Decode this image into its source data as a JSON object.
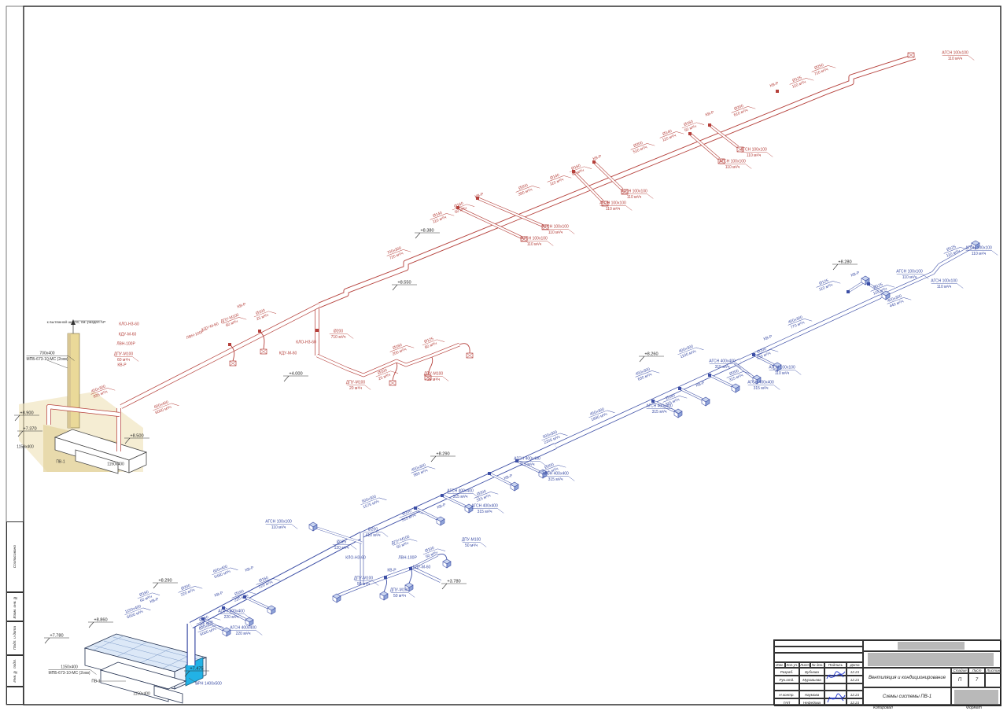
{
  "colors": {
    "exhaust": "#b5403b",
    "supply": "#3c4ea5",
    "shaft_beige": "#ead999",
    "panel_cyan": "#22b2e6",
    "redaction_gray": "#b9b9b9"
  },
  "margins": {
    "items": [
      "Согласовано",
      "Взам. инв. №",
      "Подп. и дата",
      "Инв. № подл."
    ]
  },
  "tb": {
    "header": [
      "Изм.",
      "Кол.уч.",
      "Лист",
      "№ док.",
      "Подпись",
      "Дата"
    ],
    "rows": [
      {
        "role": "Разраб.",
        "name": "Бубнова",
        "date": "12.21"
      },
      {
        "role": "Рук.отд.",
        "name": "Муравьева",
        "date": "12.21"
      },
      {
        "role": "",
        "name": "",
        "date": ""
      },
      {
        "role": "Н.контр.",
        "name": "Наумова",
        "date": "12.21"
      },
      {
        "role": "ГАП",
        "name": "Нефедова",
        "date": "12.21"
      }
    ],
    "doc_type": "Вентиляция и кондиционирование",
    "sheet_title": "Схемы системы ПВ-1",
    "stage_label": "Стадия",
    "sheet_label": "Лист",
    "sheets_label": "Листов",
    "stage": "П",
    "sheet_no": "7",
    "sheets_no": "",
    "footer_left": "Копировал",
    "footer_right": "Формат"
  },
  "drawing": {
    "notes": {
      "shaft_note": "к вытяжной шахте, см. раздел АР"
    },
    "labels": [
      [
        "АГСН 100х100",
        "110 м³/ч",
        1214,
        70,
        0,
        "r"
      ],
      [
        "Ø125",
        "110 м³/ч",
        1014,
        103,
        -21,
        "r"
      ],
      [
        "КВ-Р",
        "",
        985,
        110,
        -21,
        "r"
      ],
      [
        "Ø250",
        "710 м³/ч",
        1042,
        87,
        -21,
        "r"
      ],
      [
        "Ø200",
        "610 м³/ч",
        940,
        139,
        -21,
        "r"
      ],
      [
        "КВ-Р",
        "",
        903,
        147,
        -21,
        "r"
      ],
      [
        "Ø160",
        "50 м³/ч",
        876,
        159,
        -21,
        "r"
      ],
      [
        "Ø140",
        "110 м³/ч",
        849,
        171,
        -21,
        "r"
      ],
      [
        "АГСН 100х100",
        "110 м³/ч",
        958,
        193,
        0,
        "r"
      ],
      [
        "АГСН 100х100",
        "110 м³/ч",
        931,
        208,
        0,
        "r"
      ],
      [
        "Ø200",
        "510 м³/ч",
        812,
        186,
        -21,
        "r"
      ],
      [
        "КВ-Р",
        "",
        760,
        203,
        -21,
        "r"
      ],
      [
        "Ø160",
        "50 м³/ч",
        733,
        215,
        -21,
        "r"
      ],
      [
        "Ø140",
        "110 м³/ч",
        706,
        227,
        -21,
        "r"
      ],
      [
        "АГСН 100х100",
        "110 м³/ч",
        806,
        246,
        0,
        "r"
      ],
      [
        "АГСН 100х100",
        "110 м³/ч",
        779,
        261,
        0,
        "r"
      ],
      [
        "Ø200",
        "390 м³/ч",
        666,
        240,
        -21,
        "r"
      ],
      [
        "КВ-Р",
        "",
        610,
        251,
        -21,
        "r"
      ],
      [
        "Ø160",
        "50 м³/ч",
        584,
        263,
        -21,
        "r"
      ],
      [
        "Ø140",
        "110 м³/ч",
        557,
        275,
        -21,
        "r"
      ],
      [
        "АГСН 100х100",
        "110 м³/ч",
        706,
        291,
        0,
        "r"
      ],
      [
        "АГСН 100х100",
        "110 м³/ч",
        679,
        306,
        0,
        "r"
      ],
      [
        "700х300",
        "720 м³/ч",
        502,
        321,
        -21,
        "r"
      ],
      [
        "Ø200",
        "710 м³/ч",
        430,
        424,
        0,
        "r"
      ],
      [
        "КЛО-НЗ-60",
        "",
        389,
        438,
        0,
        "r"
      ],
      [
        "КДУ-М-60",
        "",
        366,
        452,
        0,
        "r"
      ],
      [
        "КВ-Р",
        "",
        308,
        391,
        -21,
        "r"
      ],
      [
        "Ø100",
        "25 м³/ч",
        332,
        399,
        -21,
        "r"
      ],
      [
        "ДПУ-М100",
        "60 м³/ч",
        293,
        407,
        -21,
        "r"
      ],
      [
        "КДУ-М-60",
        "",
        268,
        418,
        -21,
        "r"
      ],
      [
        "ЛВН-100Р",
        "",
        249,
        428,
        -21,
        "r"
      ],
      [
        "КЛО-НЗ-60",
        "",
        164,
        415,
        0,
        "r"
      ],
      [
        "КДУ-М-60",
        "",
        162,
        428,
        0,
        "r"
      ],
      [
        "ЛВН-100Р",
        "",
        160,
        440,
        0,
        "r"
      ],
      [
        "ДПУ-М100",
        "60 м³/ч",
        157,
        453,
        0,
        "r"
      ],
      [
        "КВ-Р",
        "",
        155,
        467,
        0,
        "r"
      ],
      [
        "450х300",
        "835 м³/ч",
        126,
        497,
        -21,
        "r"
      ],
      [
        "600х400",
        "6000 м³/ч",
        206,
        517,
        -21,
        "r"
      ],
      [
        "ДПУ-М100",
        "20 м³/ч",
        452,
        489,
        0,
        "r"
      ],
      [
        "Ø100",
        "25 м³/ч",
        487,
        475,
        -21,
        "r"
      ],
      [
        "Ø160",
        "200 м³/ч",
        506,
        443,
        -21,
        "r"
      ],
      [
        "Ø125",
        "80 м³/ч",
        546,
        435,
        -21,
        "r"
      ],
      [
        "ДПУ-М100",
        "20 м³/ч",
        551,
        478,
        0,
        "r"
      ],
      [
        "700х400",
        "МПБ-673-10-МС (2охв)",
        60,
        452,
        0,
        "k"
      ],
      [
        "ПВ-1",
        "",
        77,
        590,
        0,
        "k"
      ],
      [
        "1150х400",
        "",
        32,
        571,
        0,
        "k"
      ],
      [
        "1150х400",
        "",
        147,
        593,
        0,
        "k"
      ],
      [
        "1150х400",
        "МПБ-673-10-МС (2охв)",
        88,
        851,
        0,
        "k"
      ],
      [
        "ПВ-1",
        "",
        122,
        869,
        0,
        "k"
      ],
      [
        "1150х400",
        "",
        180,
        885,
        0,
        "k"
      ],
      [
        "ВРН 1400х500",
        "",
        265,
        872,
        0,
        "b"
      ],
      [
        "600х400",
        "6000 м³/ч",
        263,
        799,
        -21,
        "b"
      ],
      [
        "1150х400",
        "6000 м³/ч",
        170,
        777,
        -21,
        "b"
      ],
      [
        "КВ-Р",
        "",
        197,
        766,
        -21,
        "b"
      ],
      [
        "Ø160",
        "60 м³/ч",
        184,
        757,
        -21,
        "b"
      ],
      [
        "Ø200",
        "220 м³/ч",
        237,
        749,
        -21,
        "b"
      ],
      [
        "600х400",
        "5480 м³/ч",
        281,
        726,
        -21,
        "b"
      ],
      [
        "КВ-Р",
        "",
        318,
        726,
        -21,
        "b"
      ],
      [
        "Ø160",
        "220 м³/ч",
        336,
        739,
        -21,
        "b"
      ],
      [
        "КВ-Р",
        "",
        279,
        758,
        -21,
        "b"
      ],
      [
        "Ø160",
        "220 м³/ч",
        305,
        756,
        -21,
        "b"
      ],
      [
        "АГСН 400х400",
        "220 м³/ч",
        294,
        780,
        0,
        "b"
      ],
      [
        "АГСН 400х400",
        "220 м³/ч",
        309,
        801,
        0,
        "b"
      ],
      [
        "Ø160",
        "220 м³/ч",
        260,
        789,
        -21,
        "b"
      ],
      [
        "500х300",
        "2205 м³/ч",
        700,
        555,
        -21,
        "b"
      ],
      [
        "450х300",
        "960 м³/ч",
        533,
        597,
        -21,
        "b"
      ],
      [
        "500х300",
        "1575 м³/ч",
        470,
        637,
        -21,
        "b"
      ],
      [
        "АГСН 400х400",
        "315 м³/ч",
        670,
        586,
        0,
        "b"
      ],
      [
        "Ø200",
        "315 м³/ч",
        699,
        595,
        -21,
        "b"
      ],
      [
        "АГСН 400х400",
        "315 м³/ч",
        706,
        605,
        0,
        "b"
      ],
      [
        "КВ-Р",
        "",
        647,
        609,
        -21,
        "b"
      ],
      [
        "Ø200",
        "315 м³/ч",
        613,
        629,
        -21,
        "b"
      ],
      [
        "АГСН 400х400",
        "315 м³/ч",
        585,
        627,
        0,
        "b"
      ],
      [
        "КВ-Р",
        "",
        562,
        646,
        -21,
        "b"
      ],
      [
        "Ø200",
        "315 м³/ч",
        518,
        654,
        -21,
        "b"
      ],
      [
        "АГСН 400х400",
        "315 м³/ч",
        616,
        646,
        0,
        "b"
      ],
      [
        "Ø200",
        "410 м³/ч",
        474,
        676,
        0,
        "b"
      ],
      [
        "АГСН 100х100",
        "110 м³/ч",
        354,
        666,
        0,
        "b"
      ],
      [
        "Ø125",
        "120 м³/ч",
        434,
        692,
        0,
        "b"
      ],
      [
        "ДПУ-М100",
        "50 м³/ч",
        510,
        689,
        -21,
        "b"
      ],
      [
        "Ø100",
        "50 м³/ч",
        547,
        701,
        -21,
        "b"
      ],
      [
        "ДПУ-М100",
        "50 м³/ч",
        599,
        689,
        0,
        "b"
      ],
      [
        "ЛВН-100Р",
        "",
        518,
        712,
        0,
        "b"
      ],
      [
        "КДУ-М-60",
        "",
        536,
        724,
        0,
        "b"
      ],
      [
        "КВ-Р",
        "",
        498,
        728,
        0,
        "b"
      ],
      [
        "ДПУ-М100",
        "50 м³/ч",
        462,
        738,
        0,
        "b"
      ],
      [
        "КЛО-НЗ-60",
        "",
        452,
        712,
        0,
        "b"
      ],
      [
        "ДПУ-М100",
        "50 м³/ч",
        508,
        753,
        0,
        "b"
      ],
      [
        "450х300",
        "1890 м³/ч",
        760,
        526,
        -21,
        "b"
      ],
      [
        "450х300",
        "630 м³/ч",
        818,
        475,
        -21,
        "b"
      ],
      [
        "400х300",
        "1100 м³/ч",
        873,
        446,
        -21,
        "b"
      ],
      [
        "КВ-Р",
        "",
        891,
        491,
        -21,
        "b"
      ],
      [
        "Ø200",
        "315 м³/ч",
        934,
        476,
        -21,
        "b"
      ],
      [
        "АГСН 400х400",
        "315 м³/ч",
        918,
        462,
        0,
        "b"
      ],
      [
        "АГСН 400х400",
        "315 м³/ч",
        967,
        489,
        0,
        "b"
      ],
      [
        "Ø160",
        "315 м³/ч",
        853,
        507,
        -21,
        "b"
      ],
      [
        "АГСН 400х400",
        "315 м³/ч",
        838,
        519,
        0,
        "b"
      ],
      [
        "КВ-Р",
        "",
        977,
        432,
        -21,
        "b"
      ],
      [
        "Ø200",
        "150 м³/ч",
        969,
        448,
        -21,
        "b"
      ],
      [
        "АГСН 100х100",
        "110 м³/ч",
        994,
        470,
        0,
        "b"
      ],
      [
        "400х300",
        "770 м³/ч",
        1012,
        409,
        -21,
        "b"
      ],
      [
        "Ø125",
        "110 м³/ч",
        1048,
        361,
        -21,
        "b"
      ],
      [
        "КВ-Р",
        "",
        1088,
        351,
        -21,
        "b"
      ],
      [
        "Ø125",
        "110 м³/ч",
        1117,
        366,
        -21,
        "b"
      ],
      [
        "АГСН 100х100",
        "110 м³/ч",
        1156,
        348,
        0,
        "b"
      ],
      [
        "АГСН 100х100",
        "110 м³/ч",
        1200,
        360,
        0,
        "b"
      ],
      [
        "400х300",
        "440 м³/ч",
        1138,
        382,
        -21,
        "b"
      ],
      [
        "Ø125",
        "110 м³/ч",
        1210,
        318,
        -21,
        "b"
      ],
      [
        "АГСН 100х100",
        "110 м³/ч",
        1244,
        318,
        0,
        "b"
      ]
    ],
    "elevations": [
      [
        "+8.380",
        543,
        296
      ],
      [
        "+8.550",
        514,
        362
      ],
      [
        "+4.000",
        376,
        478
      ],
      [
        "+8.900",
        34,
        528
      ],
      [
        "+7.370",
        38,
        548
      ],
      [
        "+8.500",
        174,
        557
      ],
      [
        "+8.290",
        210,
        741
      ],
      [
        "+7.780",
        72,
        811
      ],
      [
        "+8.860",
        128,
        791
      ],
      [
        "+7.475",
        250,
        853
      ],
      [
        "+3.780",
        577,
        742
      ],
      [
        "+8.290",
        563,
        580
      ],
      [
        "+8.260",
        828,
        453
      ],
      [
        "+8.280",
        1074,
        336
      ]
    ]
  }
}
